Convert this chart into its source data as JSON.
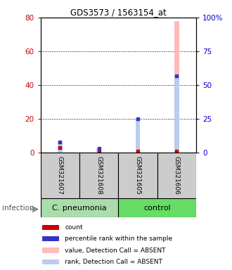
{
  "title": "GDS3573 / 1563154_at",
  "samples": [
    "GSM321607",
    "GSM321608",
    "GSM321605",
    "GSM321606"
  ],
  "group_info": [
    {
      "label": "C. pneumonia",
      "start": 0,
      "end": 2,
      "color": "#aaddaa"
    },
    {
      "label": "control",
      "start": 2,
      "end": 4,
      "color": "#66dd66"
    }
  ],
  "bar_bg_color": "#cccccc",
  "value_bars": [
    5,
    2,
    20,
    78
  ],
  "rank_bars_pct": [
    8,
    3,
    25,
    57
  ],
  "count_vals": [
    3,
    1,
    1,
    1
  ],
  "percentile_vals_pct": [
    8,
    3,
    25,
    57
  ],
  "ylim_left": [
    0,
    80
  ],
  "ylim_right": [
    0,
    100
  ],
  "yticks_left": [
    0,
    20,
    40,
    60,
    80
  ],
  "ytick_labels_left": [
    "0",
    "20",
    "40",
    "60",
    "80"
  ],
  "yticks_right": [
    0,
    25,
    50,
    75,
    100
  ],
  "ytick_labels_right": [
    "0",
    "25",
    "50",
    "75",
    "100%"
  ],
  "left_color": "#cc0000",
  "right_color": "#0000cc",
  "value_bar_color": "#ffbbbb",
  "rank_bar_color": "#bbccee",
  "count_color": "#cc0000",
  "percentile_color": "#3333cc",
  "legend_items": [
    {
      "label": "count",
      "color": "#cc0000"
    },
    {
      "label": "percentile rank within the sample",
      "color": "#3333cc"
    },
    {
      "label": "value, Detection Call = ABSENT",
      "color": "#ffbbbb"
    },
    {
      "label": "rank, Detection Call = ABSENT",
      "color": "#bbccee"
    }
  ],
  "infection_label": "infection",
  "bar_width": 0.12,
  "rank_bar_width": 0.12
}
